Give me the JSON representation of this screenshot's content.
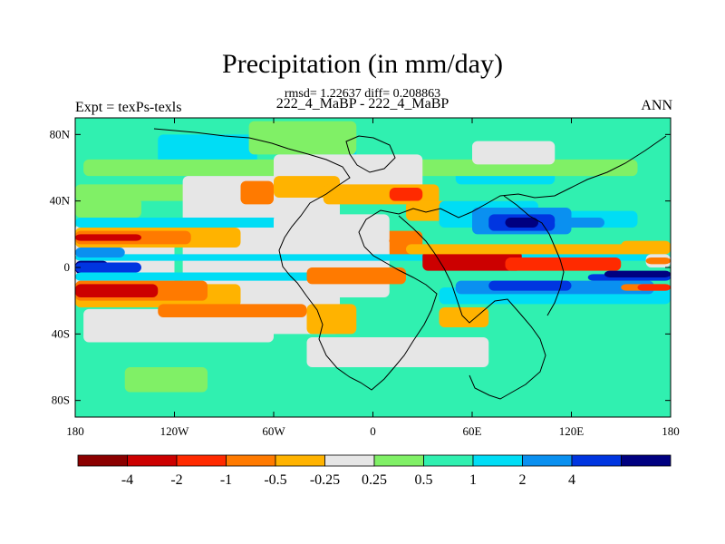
{
  "chart_data": {
    "type": "heatmap",
    "title": "Precipitation (in mm/day)",
    "stats_text": "rmsd= 1.22637  diff= 0.208863",
    "subtitle": "222_4_MaBP - 222_4_MaBP",
    "left_label": "Expt = texPs-texls",
    "right_label": "ANN",
    "x_ticks": [
      "180",
      "120W",
      "60W",
      "0",
      "60E",
      "120E",
      "180"
    ],
    "x_tick_values": [
      -180,
      -120,
      -60,
      0,
      60,
      120,
      180
    ],
    "y_ticks": [
      "80N",
      "40N",
      "0",
      "40S",
      "80S"
    ],
    "y_tick_values": [
      80,
      40,
      0,
      -40,
      -80
    ],
    "xlim": [
      -180,
      180
    ],
    "ylim": [
      -90,
      90
    ],
    "colorbar": {
      "colors": [
        "#8b0000",
        "#cc0000",
        "#ff2a00",
        "#ff7a00",
        "#ffb300",
        "#e6e6e6",
        "#80f066",
        "#30f0b0",
        "#00ddf5",
        "#0a90f0",
        "#0035e0",
        "#000080"
      ],
      "labels": [
        "-4",
        "-2",
        "-1",
        "-0.5",
        "-0.25",
        "0.25",
        "0.5",
        "1",
        "2",
        "4"
      ]
    },
    "regions": [
      {
        "lon": [
          -180,
          180
        ],
        "lat": [
          -90,
          90
        ],
        "level": 7
      },
      {
        "lon": [
          -130,
          -70
        ],
        "lat": [
          55,
          80
        ],
        "level": 8
      },
      {
        "lon": [
          -30,
          -10
        ],
        "lat": [
          65,
          78
        ],
        "level": 8
      },
      {
        "lon": [
          50,
          110
        ],
        "lat": [
          50,
          62
        ],
        "level": 8
      },
      {
        "lon": [
          -180,
          -140
        ],
        "lat": [
          30,
          42
        ],
        "level": 6
      },
      {
        "lon": [
          -180,
          -100
        ],
        "lat": [
          40,
          50
        ],
        "level": 6
      },
      {
        "lon": [
          -75,
          -10
        ],
        "lat": [
          68,
          88
        ],
        "level": 6
      },
      {
        "lon": [
          -175,
          160
        ],
        "lat": [
          55,
          65
        ],
        "level": 6
      },
      {
        "lon": [
          -150,
          -100
        ],
        "lat": [
          -75,
          -60
        ],
        "level": 6
      },
      {
        "lon": [
          -180,
          180
        ],
        "lat": [
          -55,
          -40
        ],
        "level": 7
      },
      {
        "lon": [
          -115,
          -20
        ],
        "lat": [
          -40,
          55
        ],
        "level": 5
      },
      {
        "lon": [
          -180,
          -120
        ],
        "lat": [
          -12,
          26
        ],
        "level": 5
      },
      {
        "lon": [
          -175,
          -60
        ],
        "lat": [
          -45,
          -25
        ],
        "level": 5
      },
      {
        "lon": [
          -40,
          70
        ],
        "lat": [
          -60,
          -42
        ],
        "level": 5
      },
      {
        "lon": [
          -60,
          30
        ],
        "lat": [
          45,
          68
        ],
        "level": 5
      },
      {
        "lon": [
          60,
          110
        ],
        "lat": [
          62,
          76
        ],
        "level": 5
      },
      {
        "lon": [
          -80,
          -60
        ],
        "lat": [
          38,
          52
        ],
        "level": 3
      },
      {
        "lon": [
          -60,
          -20
        ],
        "lat": [
          42,
          55
        ],
        "level": 4
      },
      {
        "lon": [
          -30,
          40
        ],
        "lat": [
          38,
          50
        ],
        "level": 4
      },
      {
        "lon": [
          10,
          30
        ],
        "lat": [
          40,
          48
        ],
        "level": 2
      },
      {
        "lon": [
          20,
          90
        ],
        "lat": [
          28,
          40
        ],
        "level": 4
      },
      {
        "lon": [
          -50,
          30
        ],
        "lat": [
          6,
          22
        ],
        "level": 3
      },
      {
        "lon": [
          -40,
          10
        ],
        "lat": [
          0,
          12
        ],
        "level": 4
      },
      {
        "lon": [
          -110,
          10
        ],
        "lat": [
          -18,
          18
        ],
        "level": 5
      },
      {
        "lon": [
          40,
          70
        ],
        "lat": [
          -36,
          -24
        ],
        "level": 4
      },
      {
        "lon": [
          -40,
          -10
        ],
        "lat": [
          -40,
          -22
        ],
        "level": 4
      },
      {
        "lon": [
          -180,
          -40
        ],
        "lat": [
          24,
          30
        ],
        "level": 8
      },
      {
        "lon": [
          -180,
          -80
        ],
        "lat": [
          12,
          24
        ],
        "level": 4
      },
      {
        "lon": [
          -180,
          -110
        ],
        "lat": [
          14,
          22
        ],
        "level": 3
      },
      {
        "lon": [
          -180,
          -140
        ],
        "lat": [
          16,
          20
        ],
        "level": 1
      },
      {
        "lon": [
          -180,
          180
        ],
        "lat": [
          4,
          8
        ],
        "level": 8
      },
      {
        "lon": [
          -180,
          -150
        ],
        "lat": [
          6,
          12
        ],
        "level": 9
      },
      {
        "lon": [
          -180,
          -160
        ],
        "lat": [
          -4,
          4
        ],
        "level": 11
      },
      {
        "lon": [
          -180,
          -140
        ],
        "lat": [
          -3,
          3
        ],
        "level": 10
      },
      {
        "lon": [
          -180,
          -20
        ],
        "lat": [
          -8,
          -3
        ],
        "level": 8
      },
      {
        "lon": [
          -180,
          -80
        ],
        "lat": [
          -24,
          -10
        ],
        "level": 4
      },
      {
        "lon": [
          -180,
          -100
        ],
        "lat": [
          -20,
          -8
        ],
        "level": 3
      },
      {
        "lon": [
          -180,
          -130
        ],
        "lat": [
          -18,
          -10
        ],
        "level": 1
      },
      {
        "lon": [
          -130,
          -40
        ],
        "lat": [
          -30,
          -22
        ],
        "level": 3
      },
      {
        "lon": [
          -40,
          20
        ],
        "lat": [
          -10,
          0
        ],
        "level": 3
      },
      {
        "lon": [
          30,
          90
        ],
        "lat": [
          -2,
          10
        ],
        "level": 1
      },
      {
        "lon": [
          80,
          150
        ],
        "lat": [
          -2,
          6
        ],
        "level": 2
      },
      {
        "lon": [
          20,
          180
        ],
        "lat": [
          8,
          14
        ],
        "level": 4
      },
      {
        "lon": [
          -60,
          10
        ],
        "lat": [
          14,
          32
        ],
        "level": 5
      },
      {
        "lon": [
          40,
          180
        ],
        "lat": [
          -22,
          -12
        ],
        "level": 8
      },
      {
        "lon": [
          50,
          170
        ],
        "lat": [
          -16,
          -8
        ],
        "level": 9
      },
      {
        "lon": [
          70,
          120
        ],
        "lat": [
          -14,
          -8
        ],
        "level": 10
      },
      {
        "lon": [
          40,
          100
        ],
        "lat": [
          24,
          40
        ],
        "level": 8
      },
      {
        "lon": [
          110,
          160
        ],
        "lat": [
          24,
          34
        ],
        "level": 8
      },
      {
        "lon": [
          130,
          180
        ],
        "lat": [
          -8,
          -4
        ],
        "level": 10
      },
      {
        "lon": [
          140,
          180
        ],
        "lat": [
          -6,
          -2
        ],
        "level": 11
      },
      {
        "lon": [
          150,
          180
        ],
        "lat": [
          -14,
          -10
        ],
        "level": 3
      },
      {
        "lon": [
          160,
          180
        ],
        "lat": [
          -14,
          -10
        ],
        "level": 2
      },
      {
        "lon": [
          150,
          180
        ],
        "lat": [
          10,
          16
        ],
        "level": 4
      },
      {
        "lon": [
          60,
          120
        ],
        "lat": [
          20,
          36
        ],
        "level": 9
      },
      {
        "lon": [
          70,
          110
        ],
        "lat": [
          22,
          32
        ],
        "level": 10
      },
      {
        "lon": [
          80,
          100
        ],
        "lat": [
          24,
          30
        ],
        "level": 11
      },
      {
        "lon": [
          110,
          140
        ],
        "lat": [
          24,
          30
        ],
        "level": 9
      },
      {
        "lon": [
          165,
          180
        ],
        "lat": [
          0,
          8
        ],
        "level": 5
      },
      {
        "lon": [
          165,
          180
        ],
        "lat": [
          2,
          6
        ],
        "level": 3
      }
    ]
  }
}
